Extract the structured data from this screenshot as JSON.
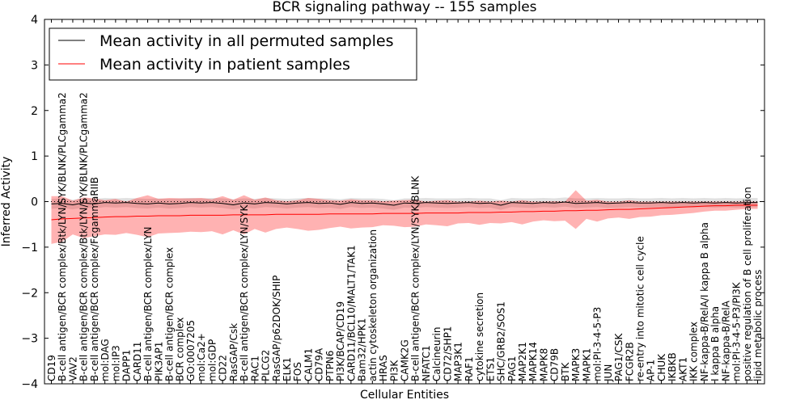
{
  "chart_data": {
    "type": "line",
    "title": "BCR signaling pathway -- 155 samples",
    "xlabel": "Cellular Entities",
    "ylabel": "Inferred Activity",
    "ylim": [
      -4,
      4
    ],
    "yticks": [
      -4,
      -3,
      -2,
      -1,
      0,
      1,
      2,
      3,
      4
    ],
    "grid": false,
    "legend_position": "top-left",
    "reference_line": {
      "y": 0,
      "style": "dotted"
    },
    "categories": [
      "CD19",
      "B-cell antigen/BCR complex/Btk/LYN/SYK/BLNK/PLCgamma2",
      "VAV2",
      "B-cell antigen/BCR complex/Btk/LYN/SYK/BLNK/PLCgamma2",
      "B-cell antigen/BCR complex/FcgammaRIIB",
      "mol:DAG",
      "mol:IP3",
      "DAPP1",
      "CARD11",
      "B-cell antigen/BCR complex/LYN",
      "PIK3AP1",
      "B-cell antigen/BCR complex",
      "BCR complex",
      "GO:0007205",
      "mol:Ca2+",
      "mol:GDP",
      "CD22",
      "RasGAP/Csk",
      "B-cell antigen/BCR complex/LYN/SYK",
      "RAC1",
      "PLCG2",
      "RasGAP/p62DOK/SHIP",
      "ELK1",
      "FOS",
      "CALM1",
      "CD79A",
      "PTPN6",
      "PI3K/BCAP/CD19",
      "CARD11/BCL10/MALT1/TAK1",
      "Bam32/HPK1",
      "actin cytoskeleton organization",
      "HRAS",
      "PI3K",
      "CAMK2G",
      "B-cell antigen/BCR complex/LYN/SYK/BLNK",
      "NFATC1",
      "Calcineurin",
      "CD72/SHP1",
      "MAP3K1",
      "RAF1",
      "cytokine secretion",
      "ETS1",
      "SHC/GRB2/SOS1",
      "PAG1",
      "MAP2K1",
      "MAPK14",
      "MAPK8",
      "CD79B",
      "BTK",
      "MAPK3",
      "MAPK1",
      "mol:PI-3-4-5-P3",
      "JUN",
      "PAG1/CSK",
      "FCGR2B",
      "re-entry into mitotic cell cycle",
      "AP-1",
      "CHUK",
      "IKBKB",
      "AKT1",
      "IKK complex",
      "NF-kappa-B/RelA/I kappa B alpha",
      "I kappa B alpha",
      "NF-kappa-B/RelA",
      "mol:PI-3-4-5-P3/PI3K",
      "positive regulation of B cell proliferation",
      "lipid metabolic process"
    ],
    "series": [
      {
        "name": "Mean activity in all permuted samples",
        "color": "#000000",
        "values": [
          -0.05,
          -0.04,
          -0.07,
          -0.03,
          -0.05,
          -0.02,
          -0.03,
          -0.02,
          -0.04,
          -0.05,
          -0.03,
          -0.05,
          -0.04,
          -0.02,
          -0.03,
          -0.02,
          -0.04,
          -0.07,
          -0.03,
          -0.05,
          -0.02,
          -0.03,
          -0.05,
          -0.03,
          -0.02,
          -0.04,
          -0.03,
          -0.06,
          -0.02,
          -0.04,
          -0.03,
          -0.05,
          -0.08,
          -0.03,
          -0.04,
          -0.02,
          -0.03,
          -0.04,
          -0.03,
          -0.02,
          -0.04,
          -0.03,
          -0.08,
          -0.02,
          -0.03,
          -0.04,
          -0.02,
          -0.03,
          -0.01,
          -0.04,
          -0.03,
          -0.02,
          -0.04,
          -0.03,
          -0.02,
          -0.03,
          -0.03,
          -0.02,
          -0.03,
          -0.02,
          -0.03,
          -0.02,
          -0.03,
          -0.02,
          -0.03,
          -0.02,
          -0.02
        ],
        "lower": [
          -0.16,
          -0.14,
          -0.17,
          -0.13,
          -0.15,
          -0.12,
          -0.13,
          -0.12,
          -0.14,
          -0.15,
          -0.13,
          -0.15,
          -0.14,
          -0.12,
          -0.13,
          -0.12,
          -0.14,
          -0.17,
          -0.13,
          -0.15,
          -0.12,
          -0.13,
          -0.15,
          -0.13,
          -0.12,
          -0.14,
          -0.13,
          -0.16,
          -0.12,
          -0.14,
          -0.13,
          -0.15,
          -0.18,
          -0.13,
          -0.14,
          -0.12,
          -0.13,
          -0.14,
          -0.13,
          -0.12,
          -0.14,
          -0.13,
          -0.18,
          -0.12,
          -0.13,
          -0.14,
          -0.12,
          -0.13,
          -0.11,
          -0.14,
          -0.13,
          -0.12,
          -0.14,
          -0.13,
          -0.12,
          -0.13,
          -0.13,
          -0.12,
          -0.13,
          -0.12,
          -0.13,
          -0.12,
          -0.13,
          -0.12,
          -0.13,
          -0.12,
          -0.12
        ],
        "upper": [
          0.06,
          0.07,
          0.04,
          0.08,
          0.06,
          0.08,
          0.07,
          0.08,
          0.07,
          0.06,
          0.07,
          0.06,
          0.07,
          0.08,
          0.07,
          0.08,
          0.07,
          0.05,
          0.07,
          0.06,
          0.08,
          0.07,
          0.06,
          0.07,
          0.08,
          0.07,
          0.07,
          0.05,
          0.08,
          0.07,
          0.07,
          0.06,
          0.03,
          0.07,
          0.07,
          0.08,
          0.07,
          0.07,
          0.07,
          0.08,
          0.07,
          0.07,
          0.03,
          0.08,
          0.07,
          0.07,
          0.08,
          0.07,
          0.09,
          0.07,
          0.07,
          0.08,
          0.07,
          0.07,
          0.08,
          0.07,
          0.07,
          0.08,
          0.07,
          0.08,
          0.07,
          0.08,
          0.07,
          0.08,
          0.07,
          0.08,
          0.08
        ]
      },
      {
        "name": "Mean activity in patient samples",
        "color": "#ff0000",
        "values": [
          -0.4,
          -0.38,
          -0.37,
          -0.36,
          -0.35,
          -0.34,
          -0.33,
          -0.33,
          -0.32,
          -0.32,
          -0.31,
          -0.31,
          -0.31,
          -0.3,
          -0.3,
          -0.3,
          -0.3,
          -0.29,
          -0.29,
          -0.29,
          -0.29,
          -0.28,
          -0.28,
          -0.28,
          -0.28,
          -0.28,
          -0.27,
          -0.27,
          -0.27,
          -0.27,
          -0.27,
          -0.26,
          -0.26,
          -0.26,
          -0.26,
          -0.25,
          -0.25,
          -0.25,
          -0.25,
          -0.24,
          -0.24,
          -0.24,
          -0.23,
          -0.23,
          -0.22,
          -0.22,
          -0.21,
          -0.21,
          -0.2,
          -0.2,
          -0.19,
          -0.19,
          -0.18,
          -0.17,
          -0.17,
          -0.16,
          -0.15,
          -0.14,
          -0.13,
          -0.12,
          -0.11,
          -0.1,
          -0.09,
          -0.09,
          -0.08,
          -0.08,
          -0.08
        ],
        "lower": [
          -0.93,
          -0.88,
          -0.72,
          -0.8,
          -0.76,
          -0.72,
          -0.73,
          -0.69,
          -0.73,
          -0.78,
          -0.7,
          -0.69,
          -0.68,
          -0.66,
          -0.67,
          -0.65,
          -0.72,
          -0.63,
          -0.72,
          -0.6,
          -0.68,
          -0.6,
          -0.57,
          -0.6,
          -0.64,
          -0.62,
          -0.58,
          -0.55,
          -0.59,
          -0.57,
          -0.56,
          -0.52,
          -0.53,
          -0.56,
          -0.55,
          -0.5,
          -0.52,
          -0.54,
          -0.48,
          -0.47,
          -0.51,
          -0.47,
          -0.48,
          -0.45,
          -0.5,
          -0.44,
          -0.41,
          -0.43,
          -0.42,
          -0.6,
          -0.38,
          -0.44,
          -0.37,
          -0.35,
          -0.38,
          -0.34,
          -0.33,
          -0.3,
          -0.29,
          -0.27,
          -0.25,
          -0.22,
          -0.2,
          -0.2,
          -0.18,
          -0.16,
          -0.16
        ],
        "upper": [
          0.12,
          0.12,
          0.02,
          0.09,
          0.07,
          0.03,
          0.06,
          0.0,
          0.08,
          0.14,
          0.06,
          0.08,
          0.07,
          0.07,
          0.08,
          0.05,
          0.12,
          0.04,
          0.14,
          0.04,
          0.09,
          0.03,
          0.01,
          0.03,
          0.08,
          0.06,
          0.03,
          0.02,
          0.05,
          0.03,
          0.03,
          0.01,
          0.02,
          0.03,
          0.04,
          0.0,
          0.02,
          0.03,
          0.0,
          0.0,
          0.02,
          0.0,
          0.02,
          0.0,
          0.03,
          0.0,
          0.0,
          0.01,
          0.0,
          0.25,
          0.02,
          0.04,
          0.0,
          0.0,
          0.03,
          0.0,
          0.0,
          0.0,
          0.0,
          0.0,
          0.0,
          0.0,
          0.0,
          0.0,
          0.0,
          0.0,
          0.0
        ]
      }
    ]
  }
}
